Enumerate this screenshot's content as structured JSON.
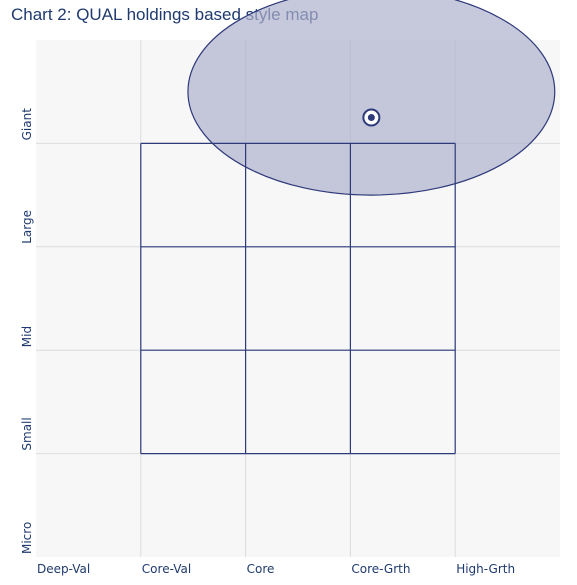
{
  "title": "Chart 2: QUAL holdings based style map",
  "chart_data": {
    "type": "scatter",
    "title": "Chart 2: QUAL holdings based style map",
    "x_categories": [
      "Deep-Val",
      "Core-Val",
      "Core",
      "Core-Grth",
      "High-Grth"
    ],
    "y_categories": [
      "Micro",
      "Small",
      "Mid",
      "Large",
      "Giant"
    ],
    "grid": true,
    "style_box": {
      "x_range": [
        1,
        4
      ],
      "y_range": [
        1,
        4
      ]
    },
    "holdings_centroid": {
      "x": 3.2,
      "y": 4.25
    },
    "holdings_ellipse": {
      "center_x": 3.2,
      "center_y": 4.5,
      "radius_x": 1.75,
      "radius_y": 1.0
    },
    "colors": {
      "grid": "#dcdcdc",
      "box": "#2e3a7a",
      "ellipse_fill": "#aeb0cd",
      "ellipse_stroke": "#2e3a7a",
      "text": "#1f3a6e"
    }
  }
}
